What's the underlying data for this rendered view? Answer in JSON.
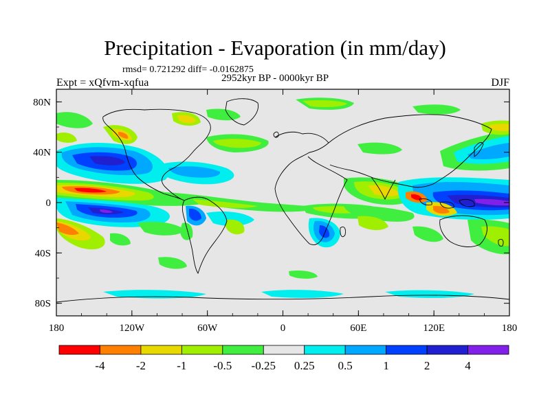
{
  "title": "Precipitation - Evaporation (in mm/day)",
  "stats": "rmsd= 0.721292 diff= -0.0162875",
  "period": "2952kyr BP - 0000kyr BP",
  "experiment": "Expt = xQfvm-xqfua",
  "season": "DJF",
  "axes": {
    "lon_labels": [
      "180",
      "120W",
      "60W",
      "0",
      "60E",
      "120E",
      "180"
    ],
    "lon_values": [
      -180,
      -120,
      -60,
      0,
      60,
      120,
      180
    ],
    "lat_labels": [
      "80N",
      "40N",
      "0",
      "40S",
      "80S"
    ],
    "lat_values": [
      80,
      40,
      0,
      -40,
      -80
    ],
    "lat_range": [
      -90,
      90
    ],
    "lon_range": [
      -180,
      180
    ]
  },
  "colorbar": {
    "labels": [
      "-4",
      "-2",
      "-1",
      "-0.5",
      "-0.25",
      "0.25",
      "0.5",
      "1",
      "2",
      "4"
    ],
    "colors": [
      "#ff0000",
      "#ff8000",
      "#e8d800",
      "#a0ee00",
      "#40ee40",
      "#e6e6e6",
      "#00eeee",
      "#00a8ff",
      "#0040ff",
      "#2020d0",
      "#8020e8"
    ]
  },
  "colors": {
    "background": "#e6e6e6",
    "coast": "#000000"
  }
}
